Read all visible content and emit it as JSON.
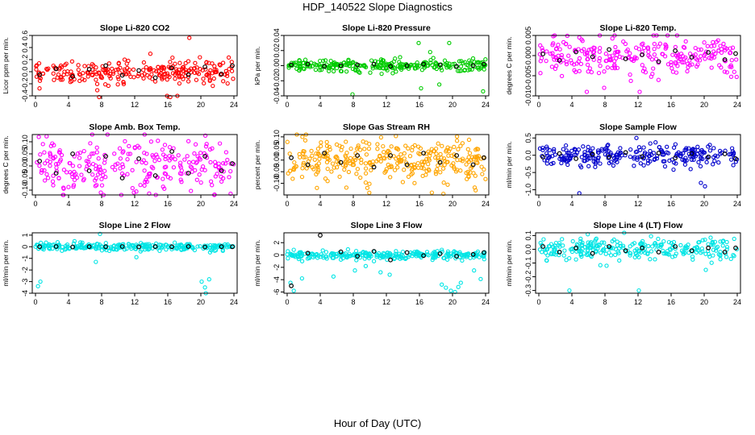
{
  "page_title": "HDP_140522  Slope Diagnostics",
  "x_axis_label": "Hour of Day (UTC)",
  "chart_data": [
    {
      "type": "scatter",
      "title": "Slope Li-820 CO2",
      "ylabel": "Licor ppm per min.",
      "xlim": [
        0,
        24
      ],
      "ylim": [
        -0.4,
        0.6
      ],
      "yticks": [
        -0.4,
        -0.2,
        0.0,
        0.2,
        0.4,
        0.6
      ],
      "ytick_labels": [
        "-0.4",
        "-0.2",
        "0.0",
        "0.2",
        "0.4",
        "0.6"
      ],
      "xticks": [
        0,
        4,
        8,
        12,
        16,
        20,
        24
      ],
      "color": "#ff0000",
      "spread": 0.1,
      "n": 260,
      "outliers": [
        {
          "x": 7.7,
          "y": -0.42
        },
        {
          "x": 16.3,
          "y": -0.42
        },
        {
          "x": 18.6,
          "y": 0.56
        }
      ],
      "daily_series": [
        {
          "x": 0.5,
          "y": -0.05
        },
        {
          "x": 2.5,
          "y": 0.05
        },
        {
          "x": 4.5,
          "y": -0.08
        },
        {
          "x": 6.5,
          "y": 0.04
        },
        {
          "x": 8.5,
          "y": 0.1
        },
        {
          "x": 10.5,
          "y": -0.06
        },
        {
          "x": 12.5,
          "y": 0.02
        },
        {
          "x": 14.5,
          "y": -0.1
        },
        {
          "x": 16.5,
          "y": 0.06
        },
        {
          "x": 18.5,
          "y": -0.05
        },
        {
          "x": 20.5,
          "y": 0.08
        },
        {
          "x": 22.5,
          "y": -0.04
        },
        {
          "x": 23.8,
          "y": 0.1
        }
      ]
    },
    {
      "type": "scatter",
      "title": "Slope Li-820 Pressure",
      "ylabel": "kPa per min.",
      "xlim": [
        0,
        24
      ],
      "ylim": [
        -0.04,
        0.04
      ],
      "yticks": [
        -0.04,
        -0.02,
        0.0,
        0.02,
        0.04
      ],
      "ytick_labels": [
        "-0.04",
        "-0.02",
        "0.00",
        "0.02",
        "0.04"
      ],
      "xticks": [
        0,
        4,
        8,
        12,
        16,
        20,
        24
      ],
      "color": "#00cc00",
      "spread": 0.004,
      "n": 260,
      "outliers": [
        {
          "x": 7.9,
          "y": -0.038
        },
        {
          "x": 16.2,
          "y": -0.03
        },
        {
          "x": 18.4,
          "y": -0.025
        },
        {
          "x": 19.6,
          "y": 0.03
        },
        {
          "x": 23.7,
          "y": -0.034
        },
        {
          "x": 17.3,
          "y": 0.018
        },
        {
          "x": 15.9,
          "y": 0.03
        }
      ],
      "daily_series": [
        {
          "x": 0.5,
          "y": 0.001
        },
        {
          "x": 2.5,
          "y": 0.002
        },
        {
          "x": 4.5,
          "y": -0.001
        },
        {
          "x": 6.5,
          "y": 0.0
        },
        {
          "x": 8.5,
          "y": 0.001
        },
        {
          "x": 10.5,
          "y": 0.002
        },
        {
          "x": 12.5,
          "y": -0.001
        },
        {
          "x": 14.5,
          "y": 0.0
        },
        {
          "x": 16.5,
          "y": 0.002
        },
        {
          "x": 18.5,
          "y": 0.001
        },
        {
          "x": 20.5,
          "y": -0.001
        },
        {
          "x": 22.5,
          "y": 0.0
        },
        {
          "x": 23.8,
          "y": 0.002
        }
      ]
    },
    {
      "type": "scatter",
      "title": "Slope Li-820 Temp.",
      "ylabel": "degrees C per min.",
      "xlim": [
        0,
        24
      ],
      "ylim": [
        -0.01,
        0.005
      ],
      "yticks": [
        -0.01,
        -0.005,
        0.0,
        0.005
      ],
      "ytick_labels": [
        "-0.010",
        "-0.005",
        "0.000",
        "0.005"
      ],
      "xticks": [
        0,
        4,
        8,
        12,
        16,
        20,
        24
      ],
      "color": "#ff00ff",
      "spread": 0.0025,
      "n": 260,
      "outliers": [
        {
          "x": 5.8,
          "y": -0.009
        },
        {
          "x": 7.9,
          "y": -0.008
        },
        {
          "x": 12.2,
          "y": -0.009
        },
        {
          "x": 4.9,
          "y": 0.0045
        }
      ],
      "daily_series": [
        {
          "x": 0.5,
          "y": 0.0004
        },
        {
          "x": 2.5,
          "y": -0.0012
        },
        {
          "x": 4.5,
          "y": 0.0009
        },
        {
          "x": 6.5,
          "y": -0.0003
        },
        {
          "x": 8.5,
          "y": 0.0015
        },
        {
          "x": 10.5,
          "y": -0.0008
        },
        {
          "x": 12.5,
          "y": 0.0002
        },
        {
          "x": 14.5,
          "y": -0.0015
        },
        {
          "x": 16.5,
          "y": 0.0012
        },
        {
          "x": 18.5,
          "y": -0.0004
        },
        {
          "x": 20.5,
          "y": 0.0008
        },
        {
          "x": 22.5,
          "y": -0.001
        },
        {
          "x": 23.8,
          "y": 0.0005
        }
      ]
    },
    {
      "type": "scatter",
      "title": "Slope Amb. Box Temp.",
      "ylabel": "degrees C per min.",
      "xlim": [
        0,
        24
      ],
      "ylim": [
        -0.12,
        0.13
      ],
      "yticks": [
        -0.1,
        -0.05,
        0.0,
        0.05,
        0.1
      ],
      "ytick_labels": [
        "-0.10",
        "-0.05",
        "0.00",
        "0.05",
        "0.10"
      ],
      "xticks": [
        0,
        4,
        8,
        12,
        16,
        20,
        24
      ],
      "color": "#ff00ff",
      "spread": 0.05,
      "n": 260,
      "outliers": [
        {
          "x": 7.9,
          "y": -0.11
        },
        {
          "x": 11.9,
          "y": -0.11
        },
        {
          "x": 23.6,
          "y": -0.115
        },
        {
          "x": 0.4,
          "y": 0.12
        }
      ],
      "daily_series": [
        {
          "x": 0.5,
          "y": 0.02
        },
        {
          "x": 2.5,
          "y": -0.03
        },
        {
          "x": 4.5,
          "y": 0.05
        },
        {
          "x": 6.5,
          "y": -0.02
        },
        {
          "x": 8.5,
          "y": 0.04
        },
        {
          "x": 10.5,
          "y": -0.05
        },
        {
          "x": 12.5,
          "y": 0.03
        },
        {
          "x": 14.5,
          "y": -0.04
        },
        {
          "x": 16.5,
          "y": 0.06
        },
        {
          "x": 18.5,
          "y": -0.03
        },
        {
          "x": 20.5,
          "y": 0.04
        },
        {
          "x": 22.5,
          "y": -0.02
        },
        {
          "x": 23.8,
          "y": 0.01
        }
      ]
    },
    {
      "type": "scatter",
      "title": "Slope Gas Stream RH",
      "ylabel": "percent per min.",
      "xlim": [
        0,
        24
      ],
      "ylim": [
        -0.15,
        0.11
      ],
      "yticks": [
        -0.1,
        -0.05,
        0.0,
        0.05,
        0.1
      ],
      "ytick_labels": [
        "-0.10",
        "-0.05",
        "0.00",
        "0.05",
        "0.10"
      ],
      "xticks": [
        0,
        4,
        8,
        12,
        16,
        20,
        24
      ],
      "color": "#ffa500",
      "spread": 0.045,
      "n": 320,
      "outliers": [
        {
          "x": 17.5,
          "y": -0.14
        },
        {
          "x": 18.9,
          "y": -0.145
        },
        {
          "x": 22.8,
          "y": -0.13
        },
        {
          "x": 3.6,
          "y": -0.12
        },
        {
          "x": 9.7,
          "y": -0.12
        }
      ],
      "daily_series": [
        {
          "x": 0.5,
          "y": 0.01
        },
        {
          "x": 2.5,
          "y": -0.02
        },
        {
          "x": 4.5,
          "y": 0.03
        },
        {
          "x": 6.5,
          "y": -0.01
        },
        {
          "x": 8.5,
          "y": 0.02
        },
        {
          "x": 10.5,
          "y": -0.03
        },
        {
          "x": 12.5,
          "y": 0.02
        },
        {
          "x": 14.5,
          "y": -0.02
        },
        {
          "x": 16.5,
          "y": 0.03
        },
        {
          "x": 18.5,
          "y": -0.01
        },
        {
          "x": 20.5,
          "y": 0.02
        },
        {
          "x": 22.5,
          "y": -0.02
        },
        {
          "x": 23.8,
          "y": 0.01
        }
      ]
    },
    {
      "type": "scatter",
      "title": "Slope Sample Flow",
      "ylabel": "ml/min per min.",
      "xlim": [
        0,
        24
      ],
      "ylim": [
        -1.15,
        0.6
      ],
      "yticks": [
        -1.0,
        -0.5,
        0.0,
        0.5
      ],
      "ytick_labels": [
        "-1.0",
        "-0.5",
        "0.0",
        "0.5"
      ],
      "xticks": [
        0,
        4,
        8,
        12,
        16,
        20,
        24
      ],
      "color": "#0000cc",
      "spread": 0.15,
      "n": 260,
      "outliers": [
        {
          "x": 4.9,
          "y": -1.1
        },
        {
          "x": 20.1,
          "y": -0.9
        },
        {
          "x": 19.6,
          "y": -0.8
        },
        {
          "x": 11.8,
          "y": 0.5
        }
      ],
      "daily_series": [
        {
          "x": 0.5,
          "y": -0.05
        },
        {
          "x": 2.5,
          "y": 0.05
        },
        {
          "x": 4.5,
          "y": -0.1
        },
        {
          "x": 6.5,
          "y": 0.03
        },
        {
          "x": 8.5,
          "y": -0.05
        },
        {
          "x": 10.5,
          "y": 0.08
        },
        {
          "x": 12.5,
          "y": -0.04
        },
        {
          "x": 14.5,
          "y": 0.06
        },
        {
          "x": 16.5,
          "y": -0.08
        },
        {
          "x": 18.5,
          "y": 0.05
        },
        {
          "x": 20.5,
          "y": -0.05
        },
        {
          "x": 22.5,
          "y": 0.04
        },
        {
          "x": 23.8,
          "y": -0.1
        }
      ]
    },
    {
      "type": "scatter",
      "title": "Slope Line 2 Flow",
      "ylabel": "ml/min per min.",
      "xlim": [
        0,
        24
      ],
      "ylim": [
        -4,
        1.2
      ],
      "yticks": [
        -4,
        -3,
        -2,
        -1,
        0,
        1
      ],
      "ytick_labels": [
        "-4",
        "-3",
        "-2",
        "-1",
        "0",
        "1"
      ],
      "xticks": [
        0,
        4,
        8,
        12,
        16,
        20,
        24
      ],
      "color": "#00e5e5",
      "spread": 0.15,
      "n": 260,
      "outliers": [
        {
          "x": 0.3,
          "y": -3.4
        },
        {
          "x": 0.6,
          "y": -3.0
        },
        {
          "x": 7.3,
          "y": -1.3
        },
        {
          "x": 20.1,
          "y": -3.0
        },
        {
          "x": 20.5,
          "y": -3.5
        },
        {
          "x": 21.0,
          "y": -2.8
        },
        {
          "x": 20.6,
          "y": -4.0
        },
        {
          "x": 7.8,
          "y": 1.1
        },
        {
          "x": 12.2,
          "y": -0.9
        }
      ],
      "daily_series": [
        {
          "x": 0.5,
          "y": 0.0
        },
        {
          "x": 2.5,
          "y": 0.02
        },
        {
          "x": 4.5,
          "y": -0.02
        },
        {
          "x": 6.5,
          "y": 0.01
        },
        {
          "x": 8.5,
          "y": 0.0
        },
        {
          "x": 10.5,
          "y": 0.02
        },
        {
          "x": 12.5,
          "y": -0.01
        },
        {
          "x": 14.5,
          "y": 0.01
        },
        {
          "x": 16.5,
          "y": 0.0
        },
        {
          "x": 18.5,
          "y": 0.02
        },
        {
          "x": 20.5,
          "y": -0.02
        },
        {
          "x": 22.5,
          "y": 0.01
        },
        {
          "x": 23.8,
          "y": 0.0
        }
      ]
    },
    {
      "type": "scatter",
      "title": "Slope Line 3 Flow",
      "ylabel": "ml/min per min.",
      "xlim": [
        0,
        24
      ],
      "ylim": [
        -6.2,
        3.6
      ],
      "yticks": [
        -6,
        -4,
        -2,
        0,
        2
      ],
      "ytick_labels": [
        "-6",
        "-4",
        "-2",
        "0",
        "2"
      ],
      "xticks": [
        0,
        4,
        8,
        12,
        16,
        20,
        24
      ],
      "color": "#00e5e5",
      "spread": 0.35,
      "n": 260,
      "outliers": [
        {
          "x": 0.4,
          "y": -4.5
        },
        {
          "x": 0.8,
          "y": -5.8
        },
        {
          "x": 1.8,
          "y": -3.8
        },
        {
          "x": 5.6,
          "y": -3.5
        },
        {
          "x": 8.2,
          "y": -2.5
        },
        {
          "x": 9.5,
          "y": -1.8
        },
        {
          "x": 10.5,
          "y": -1.0
        },
        {
          "x": 11.3,
          "y": -2.8
        },
        {
          "x": 12.4,
          "y": -3.2
        },
        {
          "x": 18.7,
          "y": -4.8
        },
        {
          "x": 19.2,
          "y": -5.3
        },
        {
          "x": 19.8,
          "y": -5.8
        },
        {
          "x": 20.3,
          "y": -6.0
        },
        {
          "x": 20.7,
          "y": -5.2
        },
        {
          "x": 21.0,
          "y": -4.5
        },
        {
          "x": 22.6,
          "y": -2.5
        },
        {
          "x": 23.4,
          "y": -3.9
        }
      ],
      "daily_series": [
        {
          "x": 0.5,
          "y": -5.0
        },
        {
          "x": 2.5,
          "y": 0.3
        },
        {
          "x": 4.0,
          "y": 3.2
        },
        {
          "x": 6.5,
          "y": 0.5
        },
        {
          "x": 8.5,
          "y": -0.2
        },
        {
          "x": 10.5,
          "y": 0.6
        },
        {
          "x": 12.5,
          "y": -0.8
        },
        {
          "x": 14.5,
          "y": 0.4
        },
        {
          "x": 16.5,
          "y": -0.1
        },
        {
          "x": 18.5,
          "y": 0.2
        },
        {
          "x": 20.5,
          "y": -0.2
        },
        {
          "x": 22.5,
          "y": 0.1
        },
        {
          "x": 23.8,
          "y": 0.4
        }
      ]
    },
    {
      "type": "scatter",
      "title": "Slope Line 4 (LT) Flow",
      "ylabel": "ml/min per min.",
      "xlim": [
        0,
        24
      ],
      "ylim": [
        -0.32,
        0.12
      ],
      "yticks": [
        -0.3,
        -0.2,
        -0.1,
        0.0,
        0.1
      ],
      "ytick_labels": [
        "-0.3",
        "-0.2",
        "-0.1",
        "0.0",
        "0.1"
      ],
      "xticks": [
        0,
        4,
        8,
        12,
        16,
        20,
        24
      ],
      "color": "#00e5e5",
      "spread": 0.04,
      "n": 260,
      "outliers": [
        {
          "x": 3.7,
          "y": -0.3
        },
        {
          "x": 12.1,
          "y": -0.3
        },
        {
          "x": 20.2,
          "y": -0.15
        },
        {
          "x": 8.2,
          "y": -0.12
        }
      ],
      "daily_series": [
        {
          "x": 0.5,
          "y": 0.02
        },
        {
          "x": 2.5,
          "y": -0.02
        },
        {
          "x": 4.5,
          "y": 0.01
        },
        {
          "x": 6.5,
          "y": -0.03
        },
        {
          "x": 8.5,
          "y": 0.02
        },
        {
          "x": 10.5,
          "y": -0.01
        },
        {
          "x": 12.5,
          "y": 0.01
        },
        {
          "x": 14.5,
          "y": -0.02
        },
        {
          "x": 16.5,
          "y": 0.02
        },
        {
          "x": 18.5,
          "y": -0.01
        },
        {
          "x": 20.5,
          "y": 0.01
        },
        {
          "x": 22.5,
          "y": -0.02
        },
        {
          "x": 23.8,
          "y": 0.01
        }
      ]
    }
  ]
}
